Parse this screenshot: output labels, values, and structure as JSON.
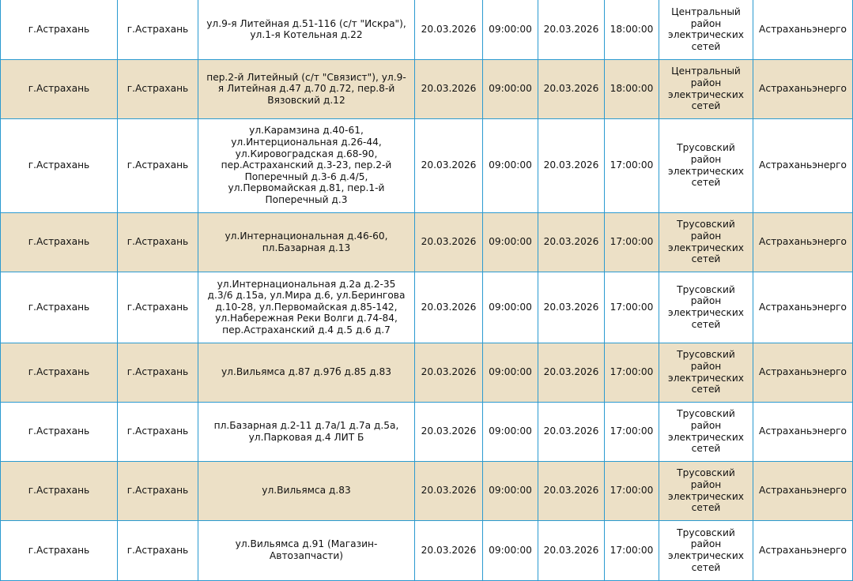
{
  "colors": {
    "row_alt_bg": "#ece0c6",
    "border": "#2b9ad0"
  },
  "rows": [
    {
      "district": "г.Астрахань",
      "city": "г.Астрахань",
      "address": "ул.9-я Литейная д.51-116 (с/т \"Искра\"),\nул.1-я Котельная д.22",
      "start_date": "20.03.2026",
      "start_time": "09:00:00",
      "end_date": "20.03.2026",
      "end_time": "18:00:00",
      "res": "Центральный\nрайон\nэлектрических\nсетей",
      "org": "Астраханьэнерго"
    },
    {
      "district": "г.Астрахань",
      "city": "г.Астрахань",
      "address": "пер.2-й Литейный (с/т \"Связист\"), ул.9-\nя Литейная д.47 д.70 д.72, пер.8-й\nВязовский д.12",
      "start_date": "20.03.2026",
      "start_time": "09:00:00",
      "end_date": "20.03.2026",
      "end_time": "18:00:00",
      "res": "Центральный\nрайон\nэлектрических\nсетей",
      "org": "Астраханьэнерго"
    },
    {
      "district": "г.Астрахань",
      "city": "г.Астрахань",
      "address": "ул.Карамзина д.40-61,\nул.Интерциональная д.26-44,\nул.Кировоградская д.68-90,\nпер.Астраханский д.3-23, пер.2-й\nПоперечный д.3-6 д.4/5,\nул.Первомайская д.81, пер.1-й\nПоперечный д.3",
      "start_date": "20.03.2026",
      "start_time": "09:00:00",
      "end_date": "20.03.2026",
      "end_time": "17:00:00",
      "res": "Трусовский\nрайон\nэлектрических\nсетей",
      "org": "Астраханьэнерго"
    },
    {
      "district": "г.Астрахань",
      "city": "г.Астрахань",
      "address": "ул.Интернациональная д.46-60,\nпл.Базарная д.13",
      "start_date": "20.03.2026",
      "start_time": "09:00:00",
      "end_date": "20.03.2026",
      "end_time": "17:00:00",
      "res": "Трусовский\nрайон\nэлектрических\nсетей",
      "org": "Астраханьэнерго"
    },
    {
      "district": "г.Астрахань",
      "city": "г.Астрахань",
      "address": "ул.Интернациональная д.2а д.2-35\nд.3/6 д.15а, ул.Мира д.6, ул.Берингова\nд.10-28, ул.Первомайская д.85-142,\nул.Набережная Реки Волги д.74-84,\nпер.Астраханский д.4 д.5 д.6 д.7",
      "start_date": "20.03.2026",
      "start_time": "09:00:00",
      "end_date": "20.03.2026",
      "end_time": "17:00:00",
      "res": "Трусовский\nрайон\nэлектрических\nсетей",
      "org": "Астраханьэнерго"
    },
    {
      "district": "г.Астрахань",
      "city": "г.Астрахань",
      "address": "ул.Вильямса д.87 д.97б д.85 д.83",
      "start_date": "20.03.2026",
      "start_time": "09:00:00",
      "end_date": "20.03.2026",
      "end_time": "17:00:00",
      "res": "Трусовский\nрайон\nэлектрических\nсетей",
      "org": "Астраханьэнерго"
    },
    {
      "district": "г.Астрахань",
      "city": "г.Астрахань",
      "address": "пл.Базарная д.2-11 д.7а/1 д.7а д.5а,\nул.Парковая д.4 ЛИТ Б",
      "start_date": "20.03.2026",
      "start_time": "09:00:00",
      "end_date": "20.03.2026",
      "end_time": "17:00:00",
      "res": "Трусовский\nрайон\nэлектрических\nсетей",
      "org": "Астраханьэнерго"
    },
    {
      "district": "г.Астрахань",
      "city": "г.Астрахань",
      "address": "ул.Вильямса д.83",
      "start_date": "20.03.2026",
      "start_time": "09:00:00",
      "end_date": "20.03.2026",
      "end_time": "17:00:00",
      "res": "Трусовский\nрайон\nэлектрических\nсетей",
      "org": "Астраханьэнерго"
    },
    {
      "district": "г.Астрахань",
      "city": "г.Астрахань",
      "address": "ул.Вильямса д.91 (Магазин-\nАвтозапчасти)",
      "start_date": "20.03.2026",
      "start_time": "09:00:00",
      "end_date": "20.03.2026",
      "end_time": "17:00:00",
      "res": "Трусовский\nрайон\nэлектрических\nсетей",
      "org": "Астраханьэнерго"
    }
  ]
}
